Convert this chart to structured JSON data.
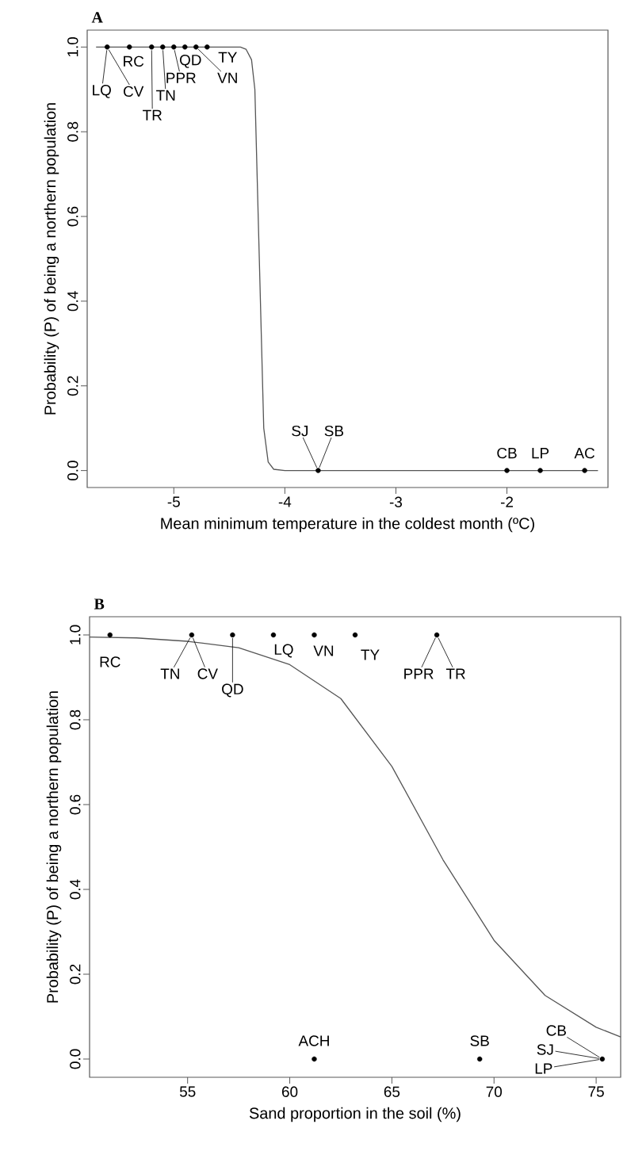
{
  "chart_data": [
    {
      "type": "scatter",
      "title": "A",
      "xlabel": "Mean minimum temperature in the coldest month (ºC)",
      "ylabel": "Probability (P) of being a northern population",
      "xlim": [
        -5.78,
        -1.09
      ],
      "ylim": [
        -0.04,
        1.04
      ],
      "xticks": [
        -5,
        -4,
        -3,
        -2
      ],
      "yticks": [
        {
          "value": 0,
          "label": "0.0"
        },
        {
          "value": 0.2,
          "label": "0.2"
        },
        {
          "value": 0.4,
          "label": "0.4"
        },
        {
          "value": 0.6,
          "label": "0.6"
        },
        {
          "value": 0.8,
          "label": "0.8"
        },
        {
          "value": 1,
          "label": "1.0"
        }
      ],
      "grid": false,
      "series": [
        {
          "type": "line",
          "color": "#555555",
          "line_style": "solid",
          "marker": "none",
          "x": [
            -5.7,
            -4.4,
            -4.35,
            -4.3,
            -4.27,
            -4.25,
            -4.23,
            -4.21,
            -4.19,
            -4.15,
            -4.1,
            -4.0,
            -1.18
          ],
          "values": [
            1,
            1,
            0.995,
            0.97,
            0.9,
            0.7,
            0.5,
            0.3,
            0.1,
            0.02,
            0.003,
            0,
            0
          ]
        },
        {
          "type": "scatter",
          "color": "#000000",
          "marker": "circle",
          "x": [
            -5.6,
            -5.4,
            -5.2,
            -5.1,
            -5.0,
            -4.9,
            -4.8,
            -4.7,
            -3.7,
            -2.0,
            -1.7,
            -1.3
          ],
          "values": [
            1,
            1,
            1,
            1,
            1,
            1,
            1,
            1,
            0,
            0,
            0,
            0
          ]
        }
      ],
      "annotations": [
        {
          "text": "LQ",
          "x": -5.6,
          "y": 1
        },
        {
          "text": "CV",
          "x": -5.6,
          "y": 1
        },
        {
          "text": "RC",
          "x": -5.4,
          "y": 1
        },
        {
          "text": "TR",
          "x": -5.2,
          "y": 1
        },
        {
          "text": "TN",
          "x": -5.1,
          "y": 1
        },
        {
          "text": "PPR",
          "x": -5.0,
          "y": 1
        },
        {
          "text": "QD",
          "x": -4.9,
          "y": 1
        },
        {
          "text": "VN",
          "x": -4.8,
          "y": 1
        },
        {
          "text": "TY",
          "x": -4.7,
          "y": 1
        },
        {
          "text": "SJ",
          "x": -3.7,
          "y": 0
        },
        {
          "text": "SB",
          "x": -3.7,
          "y": 0
        },
        {
          "text": "CB",
          "x": -2.0,
          "y": 0
        },
        {
          "text": "LP",
          "x": -1.7,
          "y": 0
        },
        {
          "text": "AC",
          "x": -1.3,
          "y": 0
        }
      ]
    },
    {
      "type": "scatter",
      "title": "B",
      "xlabel": "Sand proportion in the soil (%)",
      "ylabel": "Probability (P) of being a northern population",
      "xlim": [
        50.2,
        76.2
      ],
      "ylim": [
        -0.043,
        1.043
      ],
      "xticks": [
        55,
        60,
        65,
        70,
        75
      ],
      "yticks": [
        {
          "value": 0,
          "label": "0.0"
        },
        {
          "value": 0.2,
          "label": "0.2"
        },
        {
          "value": 0.4,
          "label": "0.4"
        },
        {
          "value": 0.6,
          "label": "0.6"
        },
        {
          "value": 0.8,
          "label": "0.8"
        },
        {
          "value": 1,
          "label": "1.0"
        }
      ],
      "grid": false,
      "series": [
        {
          "type": "line",
          "color": "#555555",
          "line_style": "solid",
          "marker": "none",
          "x": [
            50.2,
            52.5,
            55,
            57.5,
            60,
            62.5,
            65,
            67.5,
            70,
            72.5,
            75,
            76.2
          ],
          "values": [
            0.995,
            0.993,
            0.985,
            0.97,
            0.93,
            0.85,
            0.69,
            0.47,
            0.28,
            0.15,
            0.075,
            0.052
          ]
        },
        {
          "type": "scatter",
          "color": "#000000",
          "marker": "circle",
          "x": [
            51.2,
            55.2,
            57.2,
            59.2,
            61.2,
            63.2,
            67.2,
            61.2,
            69.3,
            75.3
          ],
          "values": [
            1,
            1,
            1,
            1,
            1,
            1,
            1,
            0,
            0,
            0
          ]
        }
      ],
      "annotations": [
        {
          "text": "RC",
          "x": 51.2,
          "y": 1
        },
        {
          "text": "TN",
          "x": 55.2,
          "y": 1
        },
        {
          "text": "CV",
          "x": 55.2,
          "y": 1
        },
        {
          "text": "QD",
          "x": 57.2,
          "y": 1
        },
        {
          "text": "LQ",
          "x": 59.2,
          "y": 1
        },
        {
          "text": "VN",
          "x": 61.2,
          "y": 1
        },
        {
          "text": "TY",
          "x": 63.2,
          "y": 1
        },
        {
          "text": "PPR",
          "x": 67.2,
          "y": 1
        },
        {
          "text": "TR",
          "x": 67.2,
          "y": 1
        },
        {
          "text": "ACH",
          "x": 61.2,
          "y": 0
        },
        {
          "text": "SB",
          "x": 69.3,
          "y": 0
        },
        {
          "text": "CB",
          "x": 75.3,
          "y": 0
        },
        {
          "text": "SJ",
          "x": 75.3,
          "y": 0
        },
        {
          "text": "LP",
          "x": 75.3,
          "y": 0
        }
      ]
    }
  ]
}
